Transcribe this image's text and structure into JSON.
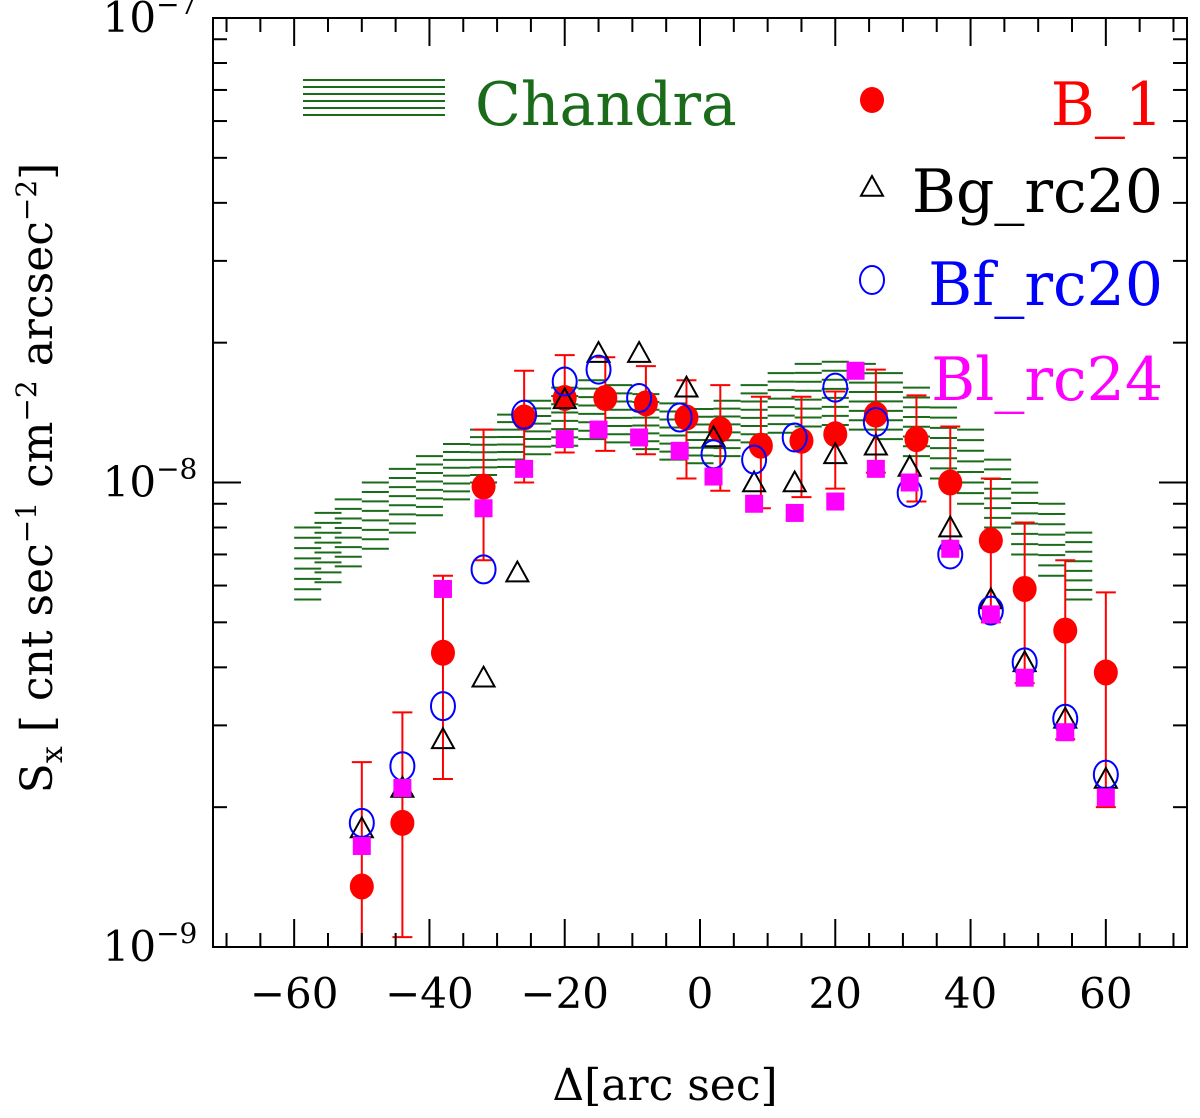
{
  "chart_data": {
    "type": "scatter",
    "title": "",
    "xlabel": "Δ[arc sec]",
    "ylabel": "S",
    "ylabel_subscript": "x",
    "ylabel_units": "[ cnt sec",
    "ylabel_units_parts": [
      "[ cnt sec",
      "−1",
      " cm",
      "−2",
      " arcsec",
      "−2",
      "]"
    ],
    "xlim": [
      -72,
      72
    ],
    "ylim": [
      1e-09,
      1e-07
    ],
    "yscale": "log",
    "x_ticks": [
      -60,
      -40,
      -20,
      0,
      20,
      40,
      60
    ],
    "x_tick_labels": [
      "−60",
      "−40",
      "−20",
      "0",
      "20",
      "40",
      "60"
    ],
    "y_tick_labels": [
      {
        "value": 1e-07,
        "mantissa": "10",
        "exponent": "−7"
      },
      {
        "value": 1e-08,
        "mantissa": "10",
        "exponent": "−8"
      },
      {
        "value": 1e-09,
        "mantissa": "10",
        "exponent": "−9"
      }
    ],
    "grid": false,
    "legend_position": "top",
    "band": {
      "name": "Chandra",
      "color": "#1a6b1a",
      "x": [
        -58,
        -55,
        -52,
        -48,
        -44,
        -40,
        -36,
        -32,
        -28,
        -24,
        -20,
        -16,
        -12,
        -8,
        -4,
        0,
        4,
        8,
        12,
        16,
        20,
        24,
        28,
        32,
        36,
        40,
        44,
        48,
        52,
        56
      ],
      "upper": [
        8e-09,
        8.6e-09,
        9.2e-09,
        1e-08,
        1.07e-08,
        1.14e-08,
        1.21e-08,
        1.3e-08,
        1.4e-08,
        1.5e-08,
        1.6e-08,
        1.66e-08,
        1.62e-08,
        1.55e-08,
        1.48e-08,
        1.44e-08,
        1.5e-08,
        1.62e-08,
        1.72e-08,
        1.8e-08,
        1.82e-08,
        1.8e-08,
        1.72e-08,
        1.6e-08,
        1.45e-08,
        1.3e-08,
        1.12e-08,
        1e-08,
        9e-09,
        7.8e-09
      ],
      "lower": [
        5.6e-09,
        6.1e-09,
        6.6e-09,
        7.2e-09,
        7.8e-09,
        8.5e-09,
        9.2e-09,
        1e-08,
        1.08e-08,
        1.15e-08,
        1.2e-08,
        1.24e-08,
        1.22e-08,
        1.18e-08,
        1.12e-08,
        1.1e-08,
        1.14e-08,
        1.22e-08,
        1.28e-08,
        1.32e-08,
        1.33e-08,
        1.3e-08,
        1.24e-08,
        1.14e-08,
        1.02e-08,
        9e-09,
        8e-09,
        7e-09,
        6.3e-09,
        5.6e-09
      ]
    },
    "series": [
      {
        "name": "B_1",
        "marker": "filled-circle",
        "color": "#ff0000",
        "x": [
          -50,
          -44,
          -38,
          -32,
          -26,
          -20,
          -14,
          -8,
          -2,
          3,
          9,
          15,
          20,
          26,
          32,
          37,
          43,
          48,
          54,
          60
        ],
        "y": [
          1.35e-09,
          1.85e-09,
          4.3e-09,
          9.8e-09,
          1.38e-08,
          1.52e-08,
          1.52e-08,
          1.48e-08,
          1.38e-08,
          1.3e-08,
          1.2e-08,
          1.23e-08,
          1.27e-08,
          1.4e-08,
          1.24e-08,
          1e-08,
          7.5e-09,
          5.9e-09,
          4.8e-09,
          3.9e-09
        ],
        "y_err_low": [
          4e-10,
          8e-10,
          2e-09,
          3e-09,
          3.8e-09,
          3.6e-09,
          3.5e-09,
          3.3e-09,
          3.6e-09,
          3.4e-09,
          3.2e-09,
          3e-09,
          3e-09,
          3.5e-09,
          3.3e-09,
          2.8e-09,
          2.5e-09,
          2.2e-09,
          2e-09,
          1.9e-09
        ],
        "y_err_high": [
          1.15e-09,
          1.35e-09,
          2e-09,
          3.2e-09,
          3.6e-09,
          3.6e-09,
          3.4e-09,
          3e-09,
          2.8e-09,
          3.2e-09,
          3.3e-09,
          3e-09,
          3e-09,
          3.5e-09,
          3e-09,
          3.2e-09,
          2.7e-09,
          2.3e-09,
          2e-09,
          1.9e-09
        ]
      },
      {
        "name": "Bg_rc20",
        "marker": "open-triangle",
        "color": "#000000",
        "x": [
          -50,
          -44,
          -38,
          -32,
          -27,
          -20,
          -15,
          -9,
          -2,
          2,
          8,
          14,
          20,
          26,
          31,
          37,
          43,
          48,
          54,
          60
        ],
        "y": [
          1.8e-09,
          2.2e-09,
          2.8e-09,
          3.8e-09,
          6.4e-09,
          1.51e-08,
          1.9e-08,
          1.9e-08,
          1.6e-08,
          1.25e-08,
          1e-08,
          1e-08,
          1.15e-08,
          1.2e-08,
          1.08e-08,
          8e-09,
          5.6e-09,
          4.1e-09,
          3.1e-09,
          2.3e-09
        ]
      },
      {
        "name": "Bf_rc20",
        "marker": "open-circle",
        "color": "#0000ff",
        "x": [
          -50,
          -44,
          -38,
          -32,
          -26,
          -20,
          -15,
          -9,
          -3,
          2,
          8,
          14,
          20,
          26,
          31,
          37,
          43,
          48,
          54,
          60
        ],
        "y": [
          1.85e-09,
          2.45e-09,
          3.3e-09,
          6.5e-09,
          1.4e-08,
          1.65e-08,
          1.75e-08,
          1.52e-08,
          1.38e-08,
          1.15e-08,
          1.12e-08,
          1.25e-08,
          1.6e-08,
          1.35e-08,
          9.5e-09,
          7e-09,
          5.3e-09,
          4.1e-09,
          3.1e-09,
          2.35e-09
        ]
      },
      {
        "name": "Bl_rc24",
        "marker": "filled-square",
        "color": "#ff00ff",
        "x": [
          -50,
          -44,
          -38,
          -32,
          -26,
          -20,
          -15,
          -9,
          -3,
          2,
          8,
          14,
          20,
          23,
          26,
          31,
          37,
          43,
          48,
          54,
          60
        ],
        "y": [
          1.65e-09,
          2.2e-09,
          5.9e-09,
          8.8e-09,
          1.07e-08,
          1.24e-08,
          1.3e-08,
          1.25e-08,
          1.17e-08,
          1.03e-08,
          9e-09,
          8.6e-09,
          9.1e-09,
          1.74e-08,
          1.07e-08,
          1e-08,
          7.2e-09,
          5.2e-09,
          3.8e-09,
          2.9e-09,
          2.1e-09
        ]
      }
    ]
  }
}
